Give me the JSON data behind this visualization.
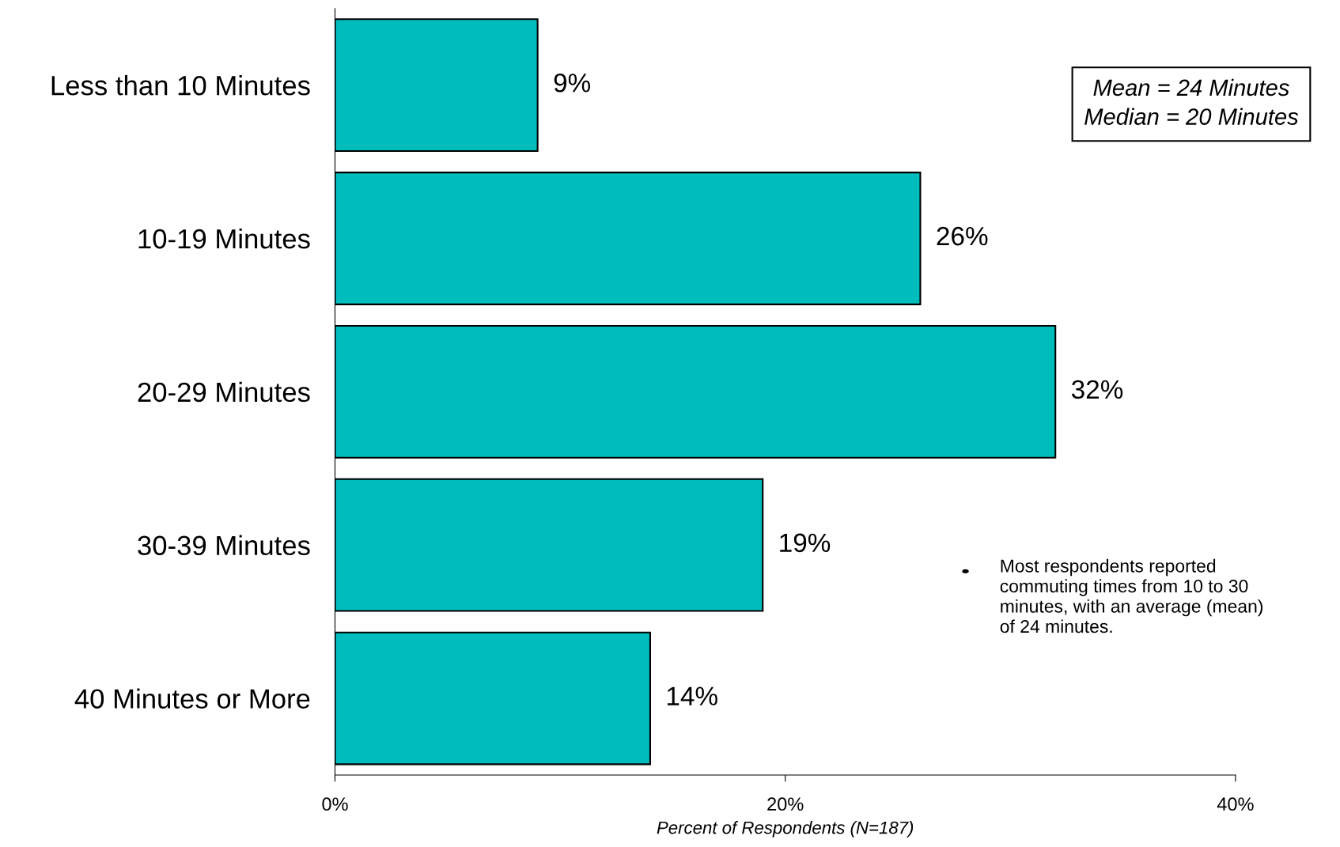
{
  "chart_data": {
    "type": "bar",
    "orientation": "horizontal",
    "categories": [
      "Less than 10 Minutes",
      "10-19 Minutes",
      "20-29 Minutes",
      "30-39 Minutes",
      "40 Minutes or More"
    ],
    "values": [
      9,
      26,
      32,
      19,
      14
    ],
    "value_labels": [
      "9%",
      "26%",
      "32%",
      "19%",
      "14%"
    ],
    "color": "#00bdbd",
    "xlim": [
      0,
      40
    ],
    "xticks": [
      {
        "value": 0,
        "label": "0%"
      },
      {
        "value": 20,
        "label": "20%"
      },
      {
        "value": 40,
        "label": "40%"
      }
    ],
    "xlabel": "Percent of Respondents (N=187)",
    "annotations": [
      "Mean = 24 Minutes\nMedian = 20 Minutes",
      "Most respondents reported\ncommuting times from 10 to 30\nminutes, with an average (mean)\nof 24 minutes."
    ],
    "grid": false,
    "legend": false
  }
}
